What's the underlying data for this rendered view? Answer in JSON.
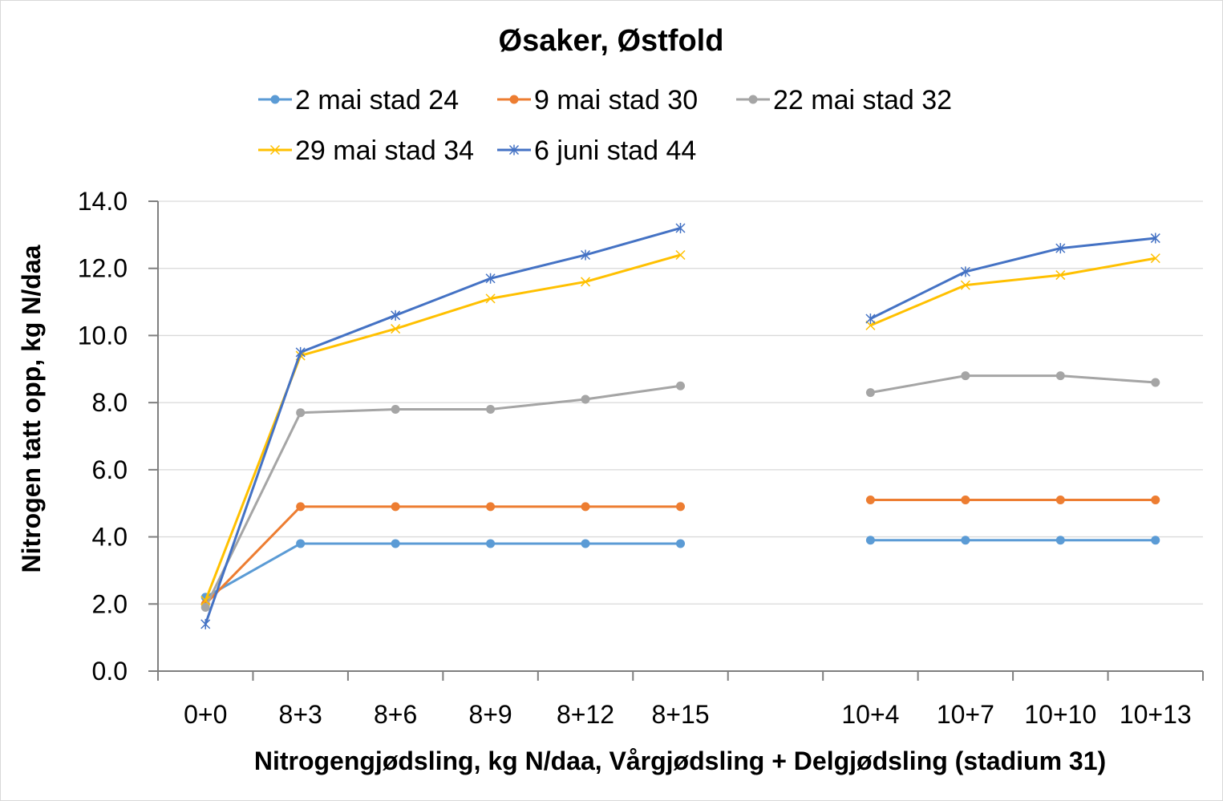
{
  "chart_data": {
    "type": "line",
    "title": "Øsaker, Østfold",
    "xlabel": "Nitrogengjødsling, kg N/daa, Vårgjødsling + Delgjødsling (stadium 31)",
    "ylabel": "Nitrogen tatt opp, kg N/daa",
    "categories": [
      "0+0",
      "8+3",
      "8+6",
      "8+9",
      "8+12",
      "8+15",
      "",
      "10+4",
      "10+7",
      "10+10",
      "10+13"
    ],
    "ylim": [
      0,
      14
    ],
    "yticks": [
      "0.0",
      "2.0",
      "4.0",
      "6.0",
      "8.0",
      "10.0",
      "12.0",
      "14.0"
    ],
    "grid": true,
    "legend_position": "top",
    "series": [
      {
        "name": "2 mai stad 24",
        "color": "#5b9bd5",
        "marker": "circle",
        "values": [
          2.2,
          3.8,
          3.8,
          3.8,
          3.8,
          3.8,
          null,
          3.9,
          3.9,
          3.9,
          3.9
        ]
      },
      {
        "name": "9 mai stad 30",
        "color": "#ed7d31",
        "marker": "circle",
        "values": [
          2.0,
          4.9,
          4.9,
          4.9,
          4.9,
          4.9,
          null,
          5.1,
          5.1,
          5.1,
          5.1
        ]
      },
      {
        "name": "22 mai stad 32",
        "color": "#a5a5a5",
        "marker": "circle",
        "values": [
          1.9,
          7.7,
          7.8,
          7.8,
          8.1,
          8.5,
          null,
          8.3,
          8.8,
          8.8,
          8.6
        ]
      },
      {
        "name": "29 mai stad 34",
        "color": "#ffc000",
        "marker": "x",
        "values": [
          2.1,
          9.4,
          10.2,
          11.1,
          11.6,
          12.4,
          null,
          10.3,
          11.5,
          11.8,
          12.3
        ]
      },
      {
        "name": "6 juni stad 44",
        "color": "#4472c4",
        "marker": "star",
        "values": [
          1.4,
          9.5,
          10.6,
          11.7,
          12.4,
          13.2,
          null,
          10.5,
          11.9,
          12.6,
          12.9
        ]
      }
    ]
  }
}
